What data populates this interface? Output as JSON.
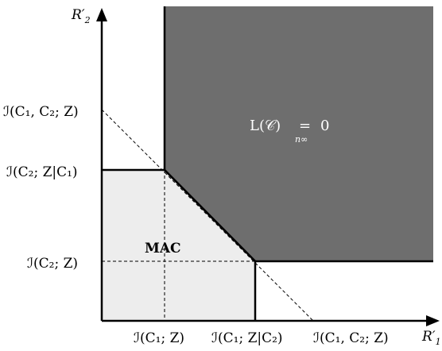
{
  "axes": {
    "x_label": "R′",
    "x_label_sub": "1",
    "y_label": "R′",
    "y_label_sub": "2"
  },
  "x_ticks": [
    "ℐ(C₁; Z)",
    "ℐ(C₁; Z|C₂)",
    "ℐ(C₁, C₂; Z)"
  ],
  "y_ticks": [
    "ℐ(C₁, C₂; Z)",
    "ℐ(C₂; Z|C₁)",
    "ℐ(C₂; Z)"
  ],
  "regions": {
    "capacity_label": "L(𝒞)",
    "capacity_equals": "=",
    "capacity_limit_sub": "n∞",
    "capacity_value": "0",
    "mac_label": "MAC"
  },
  "colors": {
    "dark_region": "#6e6e6e",
    "mac_region": "#ededed",
    "lines": "#000000",
    "region_text": "#ffffff"
  }
}
